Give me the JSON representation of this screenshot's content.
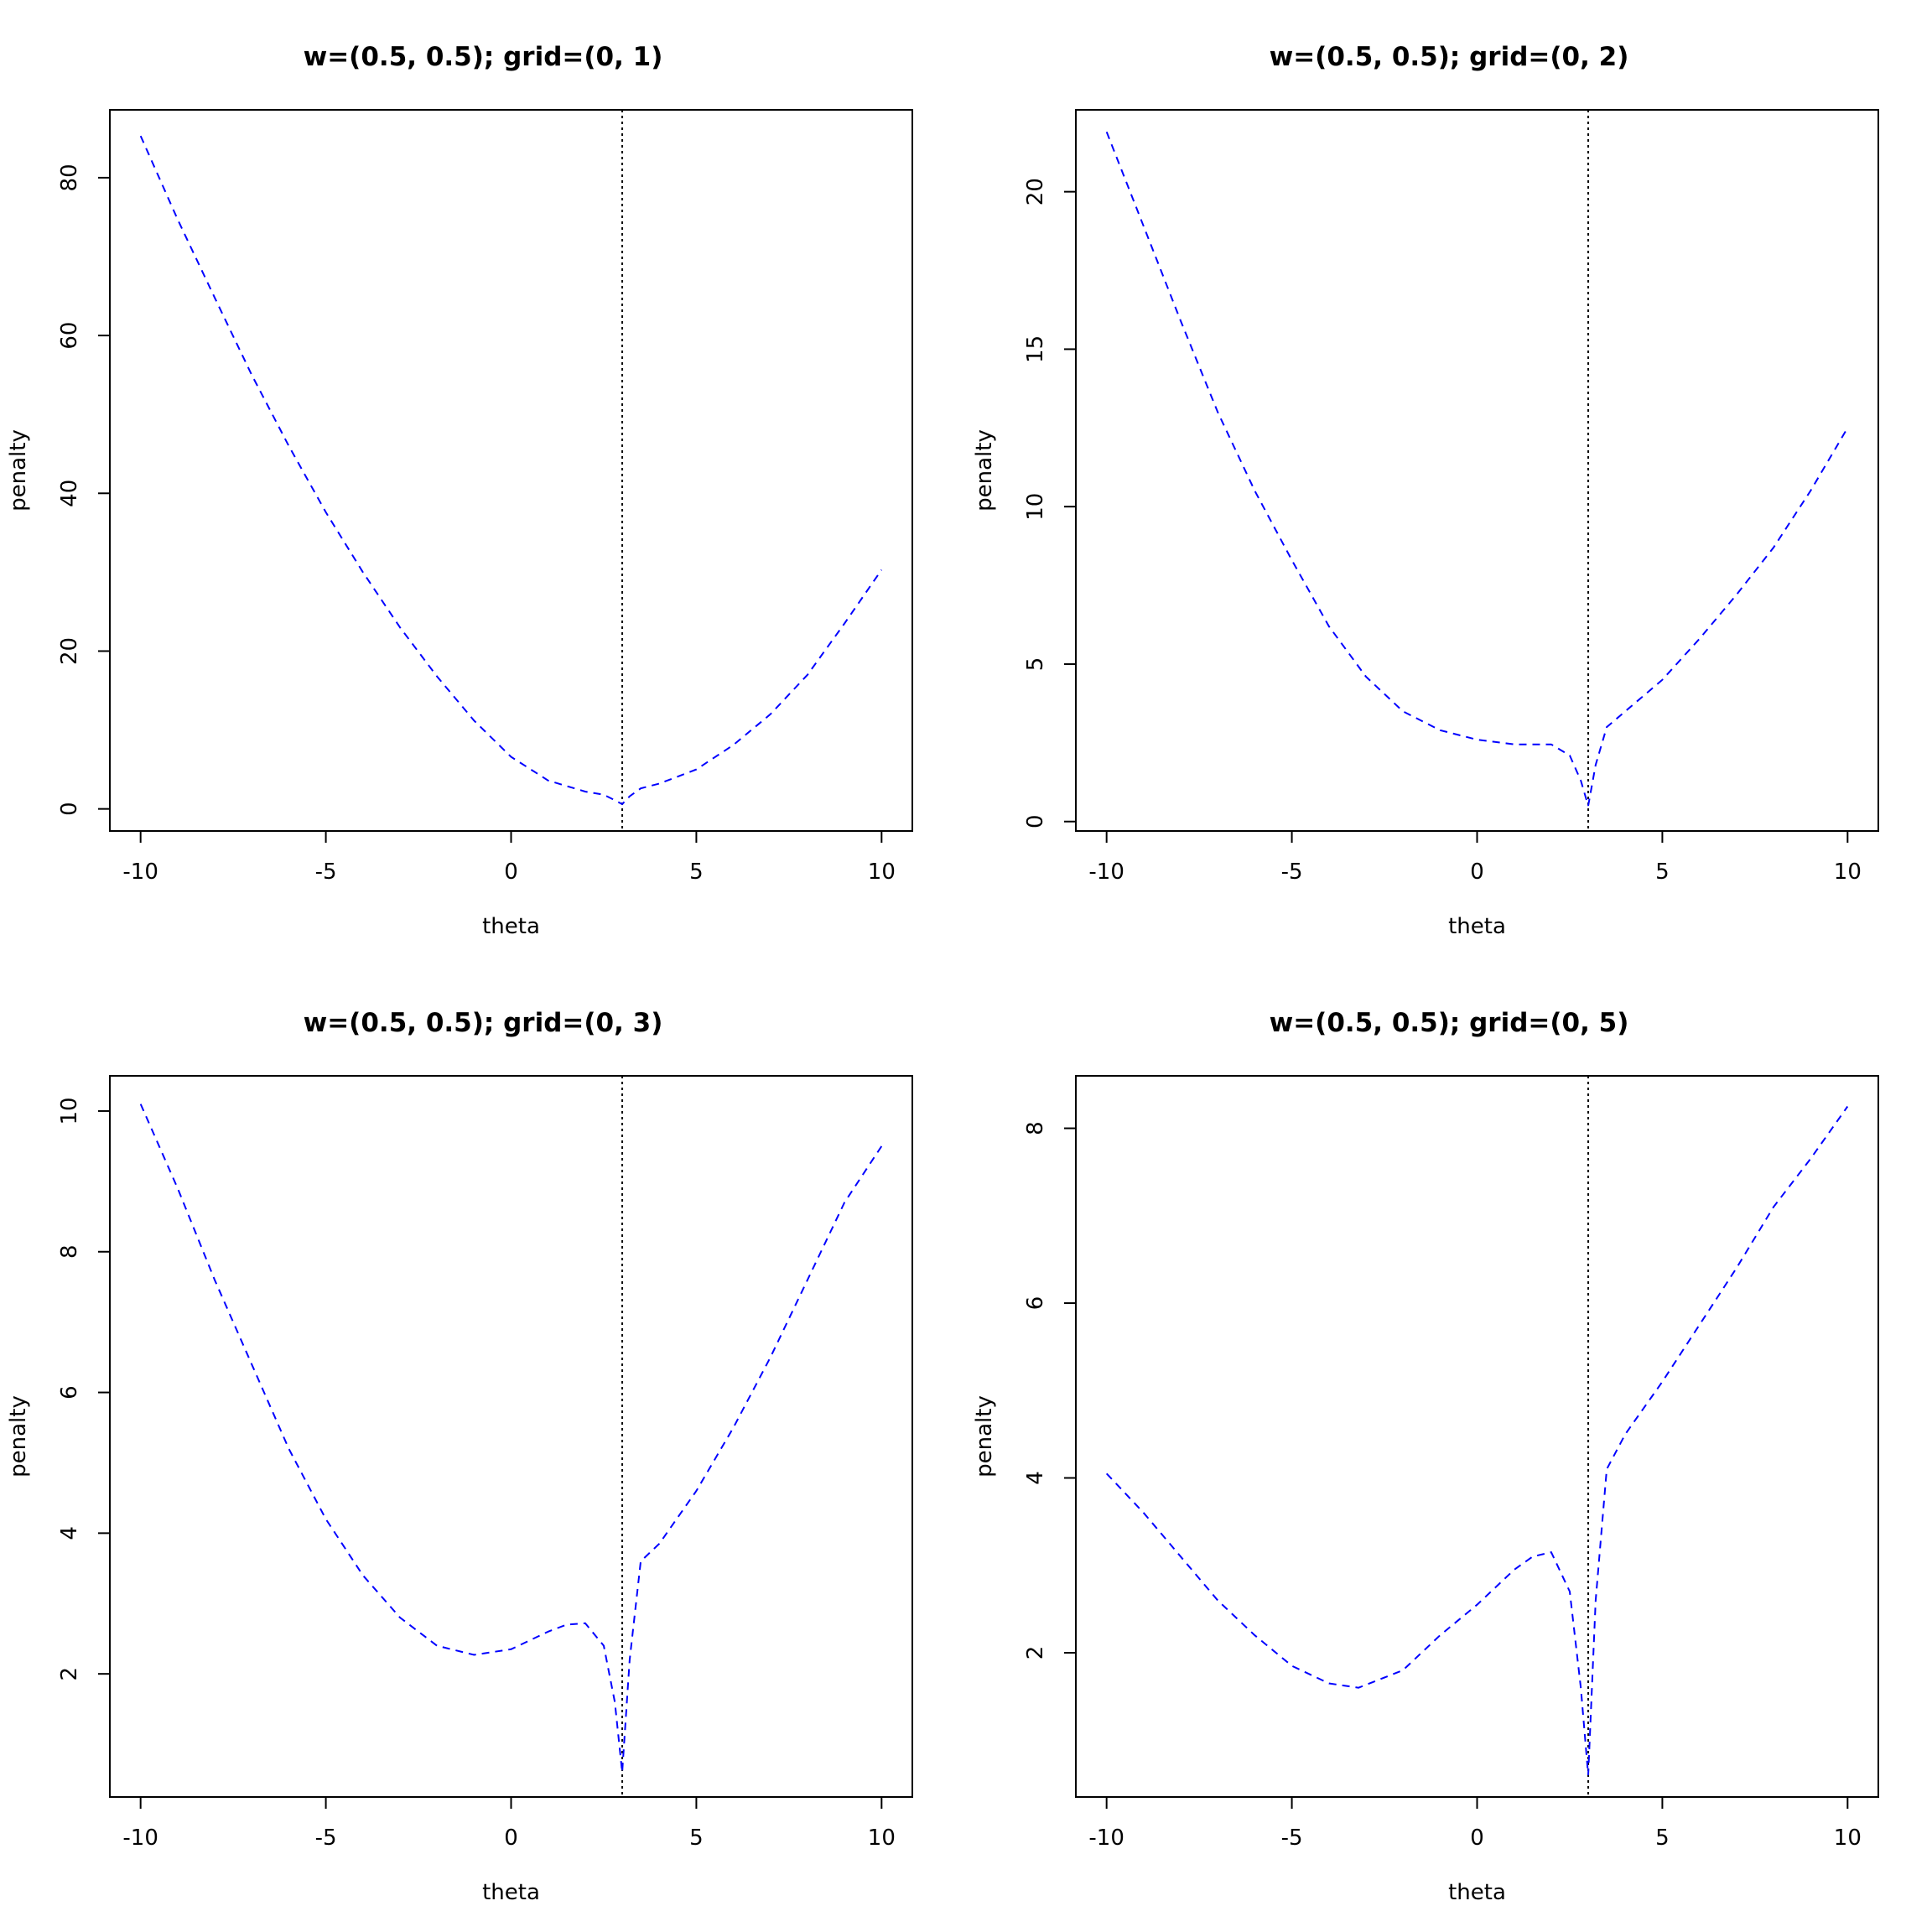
{
  "colors": {
    "series": "#0000ff",
    "reference_line": "#000000",
    "background": "#ffffff"
  },
  "chart_data": [
    {
      "type": "line",
      "title": "w=(0.5, 0.5); grid=(0, 1)",
      "xlabel": "theta",
      "ylabel": "penalty",
      "xlim": [
        -10.83,
        10.83
      ],
      "ylim": [
        -2.8,
        88.6
      ],
      "xticks": [
        -10,
        -5,
        0,
        5,
        10
      ],
      "xtick_labels": [
        "-10",
        "-5",
        "0",
        "5",
        "10"
      ],
      "yticks": [
        0,
        20,
        40,
        60,
        80
      ],
      "ytick_labels": [
        "0",
        "20",
        "40",
        "60",
        "80"
      ],
      "vline": 3,
      "grid": false,
      "series": [
        {
          "line_style": "dashed",
          "x": [
            -10,
            -9,
            -8,
            -7,
            -6,
            -5,
            -4,
            -3,
            -2,
            -1,
            0,
            1,
            2,
            2.5,
            2.8,
            3,
            3.2,
            3.5,
            4,
            5,
            6,
            7,
            8,
            9,
            10
          ],
          "y": [
            85.3,
            74.7,
            64.8,
            55.0,
            46.0,
            37.6,
            30.0,
            23.0,
            16.8,
            11.2,
            6.6,
            3.6,
            2.2,
            1.8,
            1.1,
            0.6,
            1.6,
            2.6,
            3.2,
            5.0,
            8.1,
            12.0,
            17.0,
            23.5,
            30.3
          ]
        }
      ]
    },
    {
      "type": "line",
      "title": "w=(0.5, 0.5); grid=(0, 2)",
      "xlabel": "theta",
      "ylabel": "penalty",
      "xlim": [
        -10.83,
        10.83
      ],
      "ylim": [
        -0.3,
        22.6
      ],
      "xticks": [
        -10,
        -5,
        0,
        5,
        10
      ],
      "xtick_labels": [
        "-10",
        "-5",
        "0",
        "5",
        "10"
      ],
      "yticks": [
        0,
        5,
        10,
        15,
        20
      ],
      "ytick_labels": [
        "0",
        "5",
        "10",
        "15",
        "20"
      ],
      "vline": 3,
      "grid": false,
      "series": [
        {
          "line_style": "dashed",
          "x": [
            -10,
            -9,
            -8,
            -7,
            -6,
            -5,
            -4,
            -3,
            -2,
            -1,
            0,
            1,
            2,
            2.5,
            2.8,
            3,
            3.2,
            3.5,
            4,
            5,
            6,
            7,
            8,
            9,
            10
          ],
          "y": [
            21.9,
            18.9,
            15.9,
            13.0,
            10.5,
            8.3,
            6.2,
            4.6,
            3.5,
            2.9,
            2.6,
            2.45,
            2.45,
            2.1,
            1.3,
            0.5,
            1.8,
            3.0,
            3.5,
            4.5,
            5.8,
            7.2,
            8.7,
            10.5,
            12.5
          ]
        }
      ]
    },
    {
      "type": "line",
      "title": "w=(0.5, 0.5); grid=(0, 3)",
      "xlabel": "theta",
      "ylabel": "penalty",
      "xlim": [
        -10.83,
        10.83
      ],
      "ylim": [
        0.25,
        10.5
      ],
      "xticks": [
        -10,
        -5,
        0,
        5,
        10
      ],
      "xtick_labels": [
        "-10",
        "-5",
        "0",
        "5",
        "10"
      ],
      "yticks": [
        2,
        4,
        6,
        8,
        10
      ],
      "ytick_labels": [
        "2",
        "4",
        "6",
        "8",
        "10"
      ],
      "vline": 3,
      "grid": false,
      "series": [
        {
          "line_style": "dashed",
          "x": [
            -10,
            -9,
            -8,
            -7,
            -6,
            -5,
            -4,
            -3,
            -2,
            -1,
            0,
            1,
            1.5,
            2,
            2.5,
            2.8,
            3,
            3.2,
            3.5,
            4,
            5,
            6,
            7,
            8,
            9,
            10
          ],
          "y": [
            10.1,
            8.9,
            7.6,
            6.4,
            5.2,
            4.2,
            3.4,
            2.8,
            2.4,
            2.27,
            2.35,
            2.6,
            2.7,
            2.72,
            2.4,
            1.6,
            0.6,
            2.2,
            3.6,
            3.85,
            4.6,
            5.5,
            6.5,
            7.6,
            8.7,
            9.5
          ]
        }
      ]
    },
    {
      "type": "line",
      "title": "w=(0.5, 0.5); grid=(0, 5)",
      "xlabel": "theta",
      "ylabel": "penalty",
      "xlim": [
        -10.83,
        10.83
      ],
      "ylim": [
        0.35,
        8.6
      ],
      "xticks": [
        -10,
        -5,
        0,
        5,
        10
      ],
      "xtick_labels": [
        "-10",
        "-5",
        "0",
        "5",
        "10"
      ],
      "yticks": [
        2,
        4,
        6,
        8
      ],
      "ytick_labels": [
        "2",
        "4",
        "6",
        "8"
      ],
      "vline": 3,
      "grid": false,
      "series": [
        {
          "line_style": "dashed",
          "x": [
            -10,
            -9,
            -8,
            -7,
            -6,
            -5,
            -4,
            -3.2,
            -2,
            -1,
            0,
            1,
            1.5,
            2,
            2.5,
            2.8,
            3,
            3.2,
            3.5,
            4,
            5,
            6,
            7,
            8,
            9,
            10
          ],
          "y": [
            4.05,
            3.6,
            3.1,
            2.6,
            2.2,
            1.85,
            1.65,
            1.6,
            1.8,
            2.2,
            2.55,
            2.95,
            3.1,
            3.15,
            2.7,
            1.6,
            0.6,
            2.6,
            4.1,
            4.5,
            5.1,
            5.75,
            6.4,
            7.1,
            7.65,
            8.25
          ]
        }
      ]
    }
  ]
}
